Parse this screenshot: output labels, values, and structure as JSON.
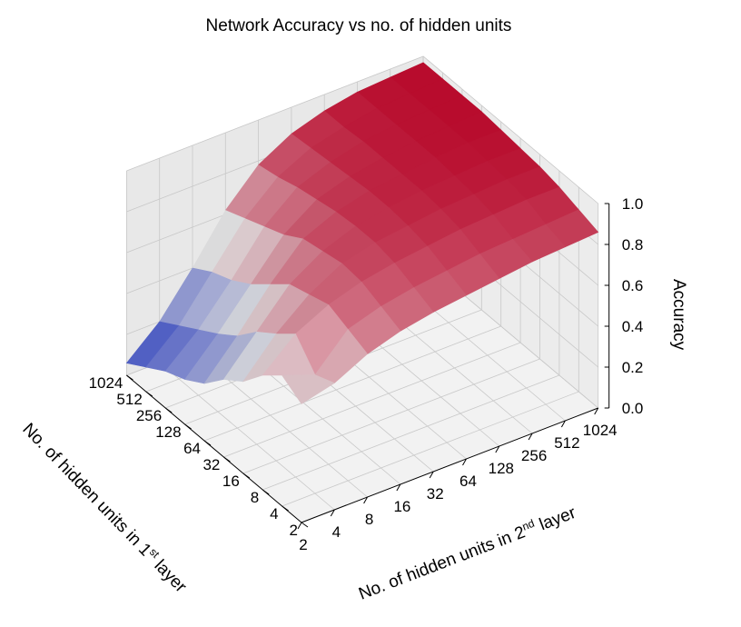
{
  "chart_data": {
    "type": "surface3d",
    "title": "Network Accuracy vs no. of hidden units",
    "xlabel": "No. of hidden units in 1",
    "xlabel_sup": "st",
    "xlabel_tail": " layer",
    "ylabel": "No. of hidden units in 2",
    "ylabel_sup": "nd",
    "ylabel_tail": " layer",
    "zlabel": "Accuracy",
    "x_ticks": [
      "2",
      "4",
      "8",
      "16",
      "32",
      "64",
      "128",
      "256",
      "512",
      "1024"
    ],
    "y_ticks": [
      "2",
      "4",
      "8",
      "16",
      "32",
      "64",
      "128",
      "256",
      "512",
      "1024"
    ],
    "z_ticks": [
      "0.0",
      "0.2",
      "0.4",
      "0.6",
      "0.8",
      "1.0"
    ],
    "zlim": [
      0,
      1
    ],
    "colormap": "coolwarm",
    "cmap_low": "#3b4cc0",
    "cmap_mid": "#dddddd",
    "cmap_high": "#b40426",
    "grid": true,
    "z": [
      [
        0.58,
        0.62,
        0.7,
        0.75,
        0.78,
        0.8,
        0.82,
        0.84,
        0.85,
        0.86
      ],
      [
        0.64,
        0.58,
        0.74,
        0.79,
        0.82,
        0.84,
        0.86,
        0.87,
        0.88,
        0.89
      ],
      [
        0.56,
        0.7,
        0.78,
        0.83,
        0.86,
        0.88,
        0.9,
        0.91,
        0.92,
        0.92
      ],
      [
        0.45,
        0.62,
        0.75,
        0.84,
        0.88,
        0.9,
        0.92,
        0.93,
        0.94,
        0.94
      ],
      [
        0.38,
        0.55,
        0.72,
        0.82,
        0.88,
        0.91,
        0.93,
        0.94,
        0.95,
        0.95
      ],
      [
        0.28,
        0.45,
        0.64,
        0.8,
        0.87,
        0.91,
        0.93,
        0.95,
        0.96,
        0.96
      ],
      [
        0.22,
        0.38,
        0.56,
        0.74,
        0.85,
        0.9,
        0.93,
        0.95,
        0.96,
        0.97
      ],
      [
        0.18,
        0.32,
        0.5,
        0.7,
        0.83,
        0.89,
        0.93,
        0.95,
        0.96,
        0.97
      ],
      [
        0.12,
        0.26,
        0.46,
        0.66,
        0.8,
        0.88,
        0.92,
        0.95,
        0.96,
        0.97
      ],
      [
        0.06,
        0.2,
        0.4,
        0.62,
        0.78,
        0.87,
        0.92,
        0.95,
        0.96,
        0.97
      ]
    ]
  }
}
